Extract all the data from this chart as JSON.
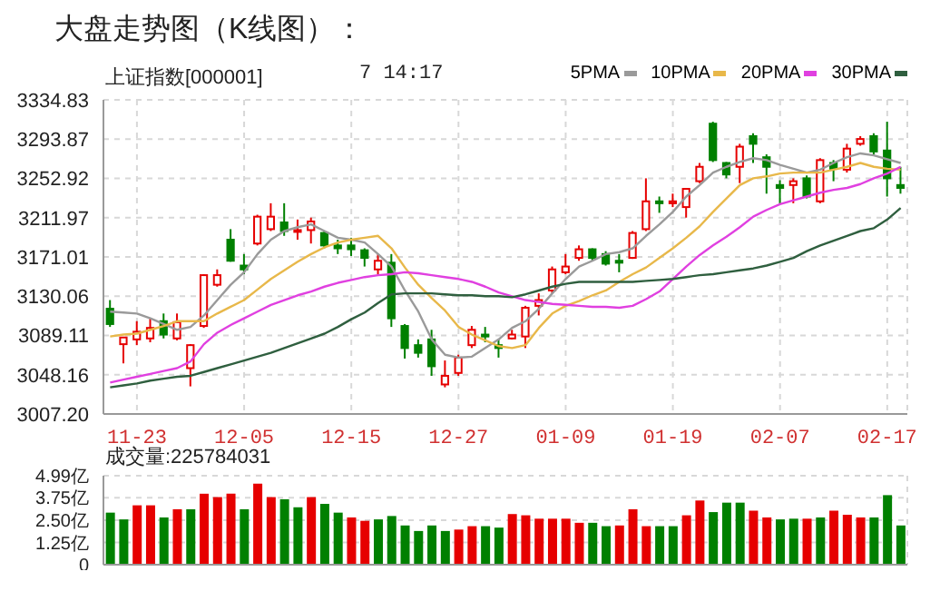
{
  "chart_data": [
    {
      "type": "candlestick",
      "title": "大盘走势图（K线图）：",
      "subtitle": "上证指数[000001]",
      "annotations": [
        "7 14:17"
      ],
      "categories": [
        null,
        null,
        "11-23",
        null,
        null,
        null,
        null,
        null,
        null,
        null,
        "12-05",
        null,
        null,
        null,
        null,
        null,
        null,
        null,
        "12-15",
        null,
        null,
        null,
        null,
        null,
        null,
        null,
        "12-27",
        null,
        null,
        null,
        null,
        null,
        null,
        null,
        "01-09",
        null,
        null,
        null,
        null,
        null,
        null,
        null,
        "01-19",
        null,
        null,
        null,
        null,
        null,
        null,
        null,
        "02-07",
        null,
        null,
        null,
        null,
        null,
        null,
        null,
        "02-17",
        null
      ],
      "ohlc": [
        [
          3117,
          3126,
          3098,
          3101
        ],
        [
          3080,
          3087,
          3060,
          3087
        ],
        [
          3085,
          3104,
          3079,
          3093
        ],
        [
          3086,
          3107,
          3082,
          3097
        ],
        [
          3104,
          3112,
          3086,
          3090
        ],
        [
          3086,
          3112,
          3084,
          3103
        ],
        [
          3055,
          3080,
          3036,
          3079
        ],
        [
          3099,
          3153,
          3097,
          3152
        ],
        [
          3142,
          3158,
          3140,
          3152
        ],
        [
          3189,
          3200,
          3166,
          3167
        ],
        [
          3162,
          3174,
          3153,
          3158
        ],
        [
          3185,
          3215,
          3183,
          3213
        ],
        [
          3200,
          3227,
          3198,
          3213
        ],
        [
          3207,
          3227,
          3193,
          3198
        ],
        [
          3198,
          3210,
          3189,
          3199
        ],
        [
          3199,
          3212,
          3185,
          3208
        ],
        [
          3196,
          3198,
          3180,
          3183
        ],
        [
          3183,
          3189,
          3174,
          3180
        ],
        [
          3183,
          3191,
          3172,
          3179
        ],
        [
          3178,
          3180,
          3161,
          3170
        ],
        [
          3158,
          3174,
          3153,
          3167
        ],
        [
          3165,
          3174,
          3098,
          3107
        ],
        [
          3099,
          3101,
          3065,
          3076
        ],
        [
          3079,
          3085,
          3066,
          3071
        ],
        [
          3085,
          3095,
          3047,
          3057
        ],
        [
          3038,
          3063,
          3035,
          3047
        ],
        [
          3050,
          3069,
          3047,
          3066
        ],
        [
          3079,
          3099,
          3076,
          3095
        ],
        [
          3090,
          3098,
          3082,
          3088
        ],
        [
          3079,
          3085,
          3066,
          3076
        ],
        [
          3086,
          3095,
          3085,
          3090
        ],
        [
          3088,
          3120,
          3076,
          3118
        ],
        [
          3120,
          3133,
          3110,
          3126
        ],
        [
          3136,
          3161,
          3133,
          3158
        ],
        [
          3155,
          3174,
          3153,
          3161
        ],
        [
          3170,
          3183,
          3167,
          3179
        ],
        [
          3179,
          3180,
          3167,
          3170
        ],
        [
          3174,
          3177,
          3162,
          3164
        ],
        [
          3167,
          3174,
          3155,
          3165
        ],
        [
          3170,
          3198,
          3169,
          3196
        ],
        [
          3200,
          3253,
          3198,
          3229
        ],
        [
          3229,
          3234,
          3217,
          3227
        ],
        [
          3227,
          3237,
          3223,
          3229
        ],
        [
          3223,
          3243,
          3212,
          3242
        ],
        [
          3250,
          3269,
          3248,
          3265
        ],
        [
          3310,
          3312,
          3270,
          3272
        ],
        [
          3269,
          3270,
          3253,
          3257
        ],
        [
          3265,
          3289,
          3248,
          3286
        ],
        [
          3297,
          3300,
          3269,
          3289
        ],
        [
          3275,
          3278,
          3237,
          3265
        ],
        [
          3246,
          3251,
          3227,
          3243
        ],
        [
          3246,
          3253,
          3227,
          3250
        ],
        [
          3253,
          3256,
          3232,
          3234
        ],
        [
          3229,
          3274,
          3227,
          3272
        ],
        [
          3269,
          3272,
          3250,
          3263
        ],
        [
          3262,
          3289,
          3259,
          3284
        ],
        [
          3289,
          3297,
          3287,
          3294
        ],
        [
          3297,
          3300,
          3278,
          3281
        ],
        [
          3282,
          3312,
          3234,
          3253
        ],
        [
          3246,
          3265,
          3237,
          3243
        ]
      ],
      "colors": [
        "#008000",
        "#e60000",
        "#e60000",
        "#e60000",
        "#008000",
        "#e60000",
        "#e60000",
        "#e60000",
        "#e60000",
        "#008000",
        "#008000",
        "#e60000",
        "#e60000",
        "#008000",
        "#e60000",
        "#e60000",
        "#008000",
        "#008000",
        "#008000",
        "#008000",
        "#e60000",
        "#008000",
        "#008000",
        "#008000",
        "#008000",
        "#e60000",
        "#e60000",
        "#e60000",
        "#008000",
        "#008000",
        "#e60000",
        "#e60000",
        "#e60000",
        "#e60000",
        "#e60000",
        "#e60000",
        "#008000",
        "#008000",
        "#008000",
        "#e60000",
        "#e60000",
        "#008000",
        "#e60000",
        "#e60000",
        "#e60000",
        "#008000",
        "#008000",
        "#e60000",
        "#008000",
        "#008000",
        "#008000",
        "#e60000",
        "#008000",
        "#e60000",
        "#008000",
        "#e60000",
        "#e60000",
        "#008000",
        "#008000",
        "#008000"
      ],
      "series": [
        {
          "name": "5PMA",
          "type": "line",
          "color": "#9a9a9a",
          "values": [
            3114,
            3113,
            3112,
            3107,
            3101,
            3095,
            3098,
            3110,
            3126,
            3142,
            3155,
            3174,
            3189,
            3198,
            3202,
            3205,
            3198,
            3191,
            3189,
            3186,
            3174,
            3161,
            3136,
            3114,
            3085,
            3069,
            3066,
            3067,
            3076,
            3085,
            3097,
            3104,
            3117,
            3133,
            3148,
            3161,
            3167,
            3174,
            3176,
            3180,
            3193,
            3205,
            3218,
            3234,
            3246,
            3259,
            3265,
            3270,
            3274,
            3272,
            3267,
            3263,
            3259,
            3262,
            3269,
            3275,
            3279,
            3277,
            3273,
            3269
          ]
        },
        {
          "name": "10PMA",
          "type": "line",
          "color": "#e8b84a",
          "values": [
            3088,
            3090,
            3091,
            3095,
            3099,
            3104,
            3104,
            3104,
            3112,
            3119,
            3126,
            3137,
            3148,
            3157,
            3166,
            3174,
            3181,
            3186,
            3189,
            3191,
            3193,
            3180,
            3160,
            3142,
            3128,
            3115,
            3098,
            3090,
            3084,
            3078,
            3076,
            3079,
            3097,
            3112,
            3120,
            3125,
            3131,
            3136,
            3145,
            3153,
            3160,
            3170,
            3180,
            3191,
            3203,
            3218,
            3232,
            3246,
            3253,
            3255,
            3258,
            3259,
            3259,
            3259,
            3262,
            3265,
            3269,
            3265,
            3263,
            3262
          ]
        },
        {
          "name": "20PMA",
          "type": "line",
          "color": "#e040e0",
          "values": [
            3040,
            3043,
            3046,
            3049,
            3052,
            3055,
            3062,
            3080,
            3092,
            3100,
            3107,
            3114,
            3121,
            3126,
            3131,
            3135,
            3140,
            3144,
            3147,
            3150,
            3152,
            3153,
            3155,
            3154,
            3152,
            3150,
            3148,
            3145,
            3140,
            3134,
            3130,
            3126,
            3124,
            3122,
            3121,
            3120,
            3119,
            3119,
            3118,
            3120,
            3127,
            3135,
            3148,
            3161,
            3173,
            3183,
            3192,
            3202,
            3213,
            3220,
            3226,
            3230,
            3234,
            3238,
            3241,
            3243,
            3247,
            3253,
            3258,
            3265
          ]
        },
        {
          "name": "30PMA",
          "type": "line",
          "color": "#2f5f3f",
          "values": [
            3035,
            3037,
            3039,
            3042,
            3044,
            3046,
            3047,
            3051,
            3055,
            3059,
            3063,
            3067,
            3071,
            3076,
            3081,
            3086,
            3091,
            3098,
            3106,
            3113,
            3123,
            3132,
            3133,
            3133,
            3133,
            3132,
            3131,
            3131,
            3130,
            3130,
            3129,
            3132,
            3136,
            3140,
            3143,
            3145,
            3145,
            3145,
            3145,
            3145,
            3146,
            3147,
            3148,
            3150,
            3152,
            3153,
            3155,
            3157,
            3159,
            3162,
            3166,
            3170,
            3177,
            3183,
            3188,
            3193,
            3198,
            3201,
            3210,
            3222
          ]
        }
      ],
      "ylim": [
        3007.2,
        3334.83
      ],
      "yticks": [
        {
          "value": 3007.2,
          "label": "3007.20"
        },
        {
          "value": 3048.16,
          "label": "3048.16"
        },
        {
          "value": 3089.11,
          "label": "3089.11"
        },
        {
          "value": 3130.06,
          "label": "3130.06"
        },
        {
          "value": 3171.01,
          "label": "3171.01"
        },
        {
          "value": 3211.97,
          "label": "3211.97"
        },
        {
          "value": 3252.92,
          "label": "3252.92"
        },
        {
          "value": 3293.87,
          "label": "3293.87"
        },
        {
          "value": 3334.83,
          "label": "3334.83"
        }
      ],
      "grid": true,
      "legend": "top right"
    },
    {
      "type": "bar",
      "subtitle": "成交量:225784031",
      "categories": [
        null,
        null,
        null,
        null,
        null,
        null,
        null,
        null,
        null,
        null,
        null,
        null,
        null,
        null,
        null,
        null,
        null,
        null,
        null,
        null,
        null,
        null,
        null,
        null,
        null,
        null,
        null,
        null,
        null,
        null,
        null,
        null,
        null,
        null,
        null,
        null,
        null,
        null,
        null,
        null,
        null,
        null,
        null,
        null,
        null,
        null,
        null,
        null,
        null,
        null,
        null,
        null,
        null,
        null,
        null,
        null,
        null,
        null,
        null,
        null
      ],
      "values": [
        2.92,
        2.54,
        3.33,
        3.33,
        2.65,
        3.11,
        3.11,
        3.98,
        3.79,
        3.98,
        3.11,
        4.55,
        3.79,
        3.67,
        3.22,
        3.79,
        3.41,
        2.92,
        2.65,
        2.46,
        2.54,
        2.73,
        2.2,
        1.89,
        2.2,
        1.89,
        1.97,
        2.16,
        2.16,
        2.08,
        2.84,
        2.77,
        2.58,
        2.58,
        2.58,
        2.35,
        2.35,
        2.16,
        2.2,
        3.11,
        2.16,
        2.16,
        2.16,
        2.77,
        3.6,
        2.95,
        3.48,
        3.48,
        3.03,
        2.65,
        2.54,
        2.58,
        2.58,
        2.65,
        3.03,
        2.8,
        2.65,
        2.65,
        3.9,
        2.2
      ],
      "colors": [
        "#008000",
        "#008000",
        "#e60000",
        "#e60000",
        "#008000",
        "#e60000",
        "#008000",
        "#e60000",
        "#e60000",
        "#e60000",
        "#008000",
        "#e60000",
        "#e60000",
        "#008000",
        "#008000",
        "#e60000",
        "#008000",
        "#008000",
        "#e60000",
        "#e60000",
        "#008000",
        "#008000",
        "#008000",
        "#008000",
        "#008000",
        "#008000",
        "#e60000",
        "#e60000",
        "#008000",
        "#008000",
        "#e60000",
        "#e60000",
        "#e60000",
        "#e60000",
        "#e60000",
        "#e60000",
        "#008000",
        "#008000",
        "#e60000",
        "#e60000",
        "#e60000",
        "#008000",
        "#008000",
        "#e60000",
        "#e60000",
        "#008000",
        "#008000",
        "#008000",
        "#e60000",
        "#e60000",
        "#008000",
        "#008000",
        "#e60000",
        "#008000",
        "#e60000",
        "#e60000",
        "#e60000",
        "#008000",
        "#008000",
        "#008000"
      ],
      "ylim": [
        0,
        4.99
      ],
      "yticks": [
        0,
        {
          "value": 1.25,
          "label": "1.25亿"
        },
        {
          "value": 2.5,
          "label": "2.50亿"
        },
        {
          "value": 3.75,
          "label": "3.75亿"
        },
        {
          "value": 4.99,
          "label": "4.99亿"
        }
      ],
      "grid": true,
      "tick_labels": "y"
    }
  ]
}
